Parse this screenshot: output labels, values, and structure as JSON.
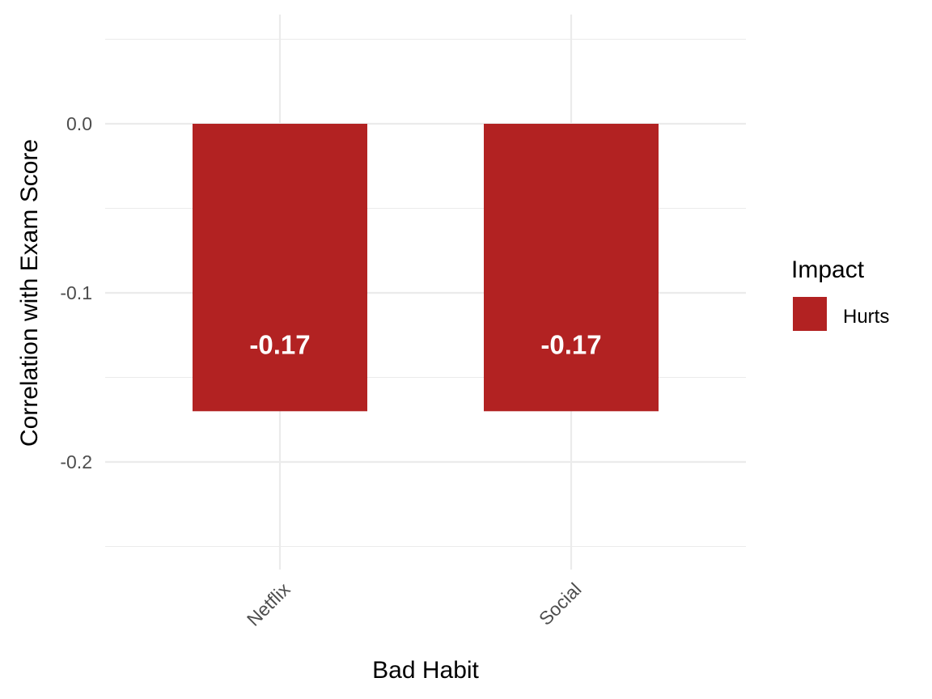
{
  "chart_data": {
    "type": "bar",
    "categories": [
      "Netflix",
      "Social"
    ],
    "values": [
      -0.17,
      -0.17
    ],
    "data_labels": [
      "-0.17",
      "-0.17"
    ],
    "xlabel": "Bad Habit",
    "ylabel": "Correlation with Exam Score",
    "ylim": [
      -0.25,
      0.05
    ],
    "yticks": [
      0.0,
      -0.1,
      -0.2
    ],
    "ytick_labels": [
      "0.0",
      "-0.1",
      "-0.2"
    ],
    "grid": true,
    "bar_color": "#B22222",
    "legend": {
      "title": "Impact",
      "placement": "right",
      "entries": [
        {
          "label": "Hurts",
          "color": "#B22222"
        }
      ]
    }
  }
}
